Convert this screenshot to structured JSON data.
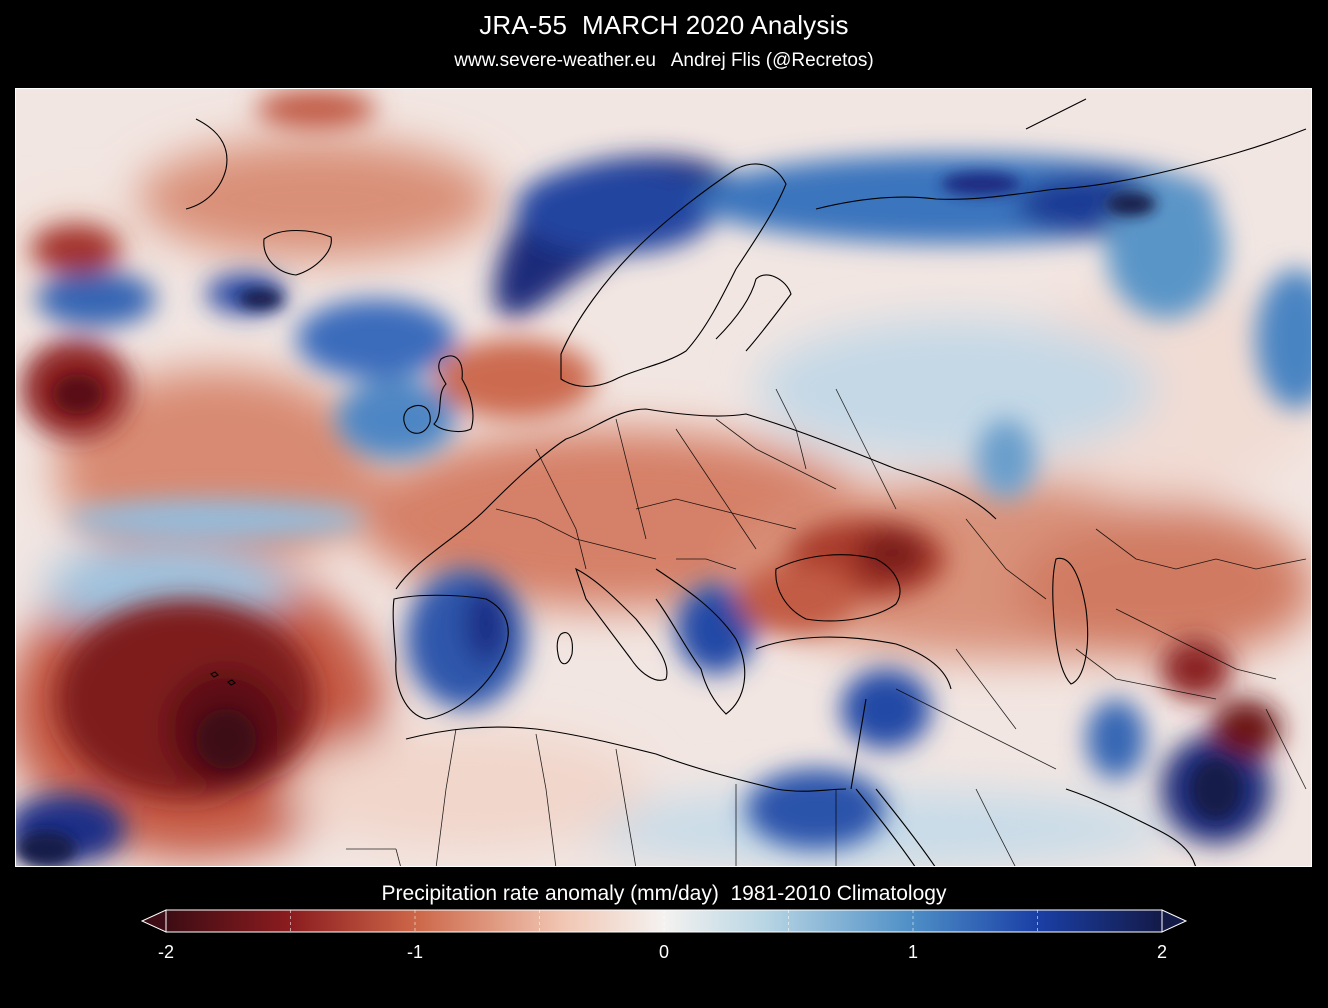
{
  "header": {
    "title": "JRA-55  MARCH 2020 Analysis",
    "subtitle": "www.severe-weather.eu   Andrej Flis (@Recretos)"
  },
  "map": {
    "field": "precipitation rate anomaly",
    "region": "Europe, North Atlantic, North Africa, Middle East"
  },
  "colorbar": {
    "title": "Precipitation rate anomaly (mm/day)  1981-2010 Climatology",
    "range": [
      -2,
      2
    ],
    "tick_labels": [
      "-2",
      "-1",
      "0",
      "1",
      "2"
    ],
    "colors": {
      "min": "#3d0c14",
      "neg_strong": "#8c1c1f",
      "neg_mid": "#cc6648",
      "neg_weak": "#f1c7b4",
      "zero": "#f4f2f0",
      "pos_weak": "#b9d6e4",
      "pos_mid": "#4d8ec6",
      "pos_strong": "#1a3fa6",
      "max": "#141a48"
    }
  }
}
